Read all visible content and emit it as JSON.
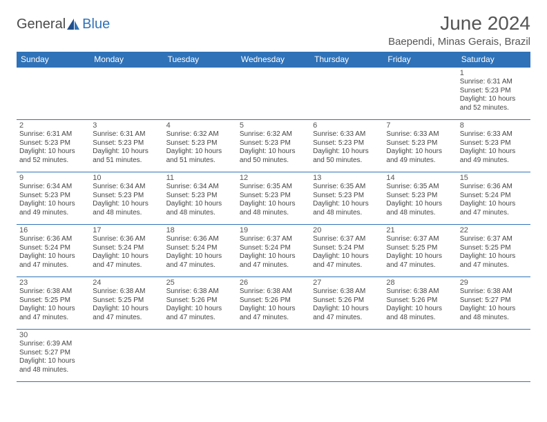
{
  "brand": {
    "part1": "General",
    "part2": "Blue"
  },
  "title": "June 2024",
  "location": "Baependi, Minas Gerais, Brazil",
  "colors": {
    "header_bg": "#2f72b8",
    "header_text": "#ffffff",
    "border": "#2f72b8",
    "text": "#444444",
    "title_text": "#555555"
  },
  "dayHeaders": [
    "Sunday",
    "Monday",
    "Tuesday",
    "Wednesday",
    "Thursday",
    "Friday",
    "Saturday"
  ],
  "weeks": [
    [
      null,
      null,
      null,
      null,
      null,
      null,
      {
        "n": "1",
        "sr": "6:31 AM",
        "ss": "5:23 PM",
        "dl": "10 hours and 52 minutes."
      }
    ],
    [
      {
        "n": "2",
        "sr": "6:31 AM",
        "ss": "5:23 PM",
        "dl": "10 hours and 52 minutes."
      },
      {
        "n": "3",
        "sr": "6:31 AM",
        "ss": "5:23 PM",
        "dl": "10 hours and 51 minutes."
      },
      {
        "n": "4",
        "sr": "6:32 AM",
        "ss": "5:23 PM",
        "dl": "10 hours and 51 minutes."
      },
      {
        "n": "5",
        "sr": "6:32 AM",
        "ss": "5:23 PM",
        "dl": "10 hours and 50 minutes."
      },
      {
        "n": "6",
        "sr": "6:33 AM",
        "ss": "5:23 PM",
        "dl": "10 hours and 50 minutes."
      },
      {
        "n": "7",
        "sr": "6:33 AM",
        "ss": "5:23 PM",
        "dl": "10 hours and 49 minutes."
      },
      {
        "n": "8",
        "sr": "6:33 AM",
        "ss": "5:23 PM",
        "dl": "10 hours and 49 minutes."
      }
    ],
    [
      {
        "n": "9",
        "sr": "6:34 AM",
        "ss": "5:23 PM",
        "dl": "10 hours and 49 minutes."
      },
      {
        "n": "10",
        "sr": "6:34 AM",
        "ss": "5:23 PM",
        "dl": "10 hours and 48 minutes."
      },
      {
        "n": "11",
        "sr": "6:34 AM",
        "ss": "5:23 PM",
        "dl": "10 hours and 48 minutes."
      },
      {
        "n": "12",
        "sr": "6:35 AM",
        "ss": "5:23 PM",
        "dl": "10 hours and 48 minutes."
      },
      {
        "n": "13",
        "sr": "6:35 AM",
        "ss": "5:23 PM",
        "dl": "10 hours and 48 minutes."
      },
      {
        "n": "14",
        "sr": "6:35 AM",
        "ss": "5:23 PM",
        "dl": "10 hours and 48 minutes."
      },
      {
        "n": "15",
        "sr": "6:36 AM",
        "ss": "5:24 PM",
        "dl": "10 hours and 47 minutes."
      }
    ],
    [
      {
        "n": "16",
        "sr": "6:36 AM",
        "ss": "5:24 PM",
        "dl": "10 hours and 47 minutes."
      },
      {
        "n": "17",
        "sr": "6:36 AM",
        "ss": "5:24 PM",
        "dl": "10 hours and 47 minutes."
      },
      {
        "n": "18",
        "sr": "6:36 AM",
        "ss": "5:24 PM",
        "dl": "10 hours and 47 minutes."
      },
      {
        "n": "19",
        "sr": "6:37 AM",
        "ss": "5:24 PM",
        "dl": "10 hours and 47 minutes."
      },
      {
        "n": "20",
        "sr": "6:37 AM",
        "ss": "5:24 PM",
        "dl": "10 hours and 47 minutes."
      },
      {
        "n": "21",
        "sr": "6:37 AM",
        "ss": "5:25 PM",
        "dl": "10 hours and 47 minutes."
      },
      {
        "n": "22",
        "sr": "6:37 AM",
        "ss": "5:25 PM",
        "dl": "10 hours and 47 minutes."
      }
    ],
    [
      {
        "n": "23",
        "sr": "6:38 AM",
        "ss": "5:25 PM",
        "dl": "10 hours and 47 minutes."
      },
      {
        "n": "24",
        "sr": "6:38 AM",
        "ss": "5:25 PM",
        "dl": "10 hours and 47 minutes."
      },
      {
        "n": "25",
        "sr": "6:38 AM",
        "ss": "5:26 PM",
        "dl": "10 hours and 47 minutes."
      },
      {
        "n": "26",
        "sr": "6:38 AM",
        "ss": "5:26 PM",
        "dl": "10 hours and 47 minutes."
      },
      {
        "n": "27",
        "sr": "6:38 AM",
        "ss": "5:26 PM",
        "dl": "10 hours and 47 minutes."
      },
      {
        "n": "28",
        "sr": "6:38 AM",
        "ss": "5:26 PM",
        "dl": "10 hours and 48 minutes."
      },
      {
        "n": "29",
        "sr": "6:38 AM",
        "ss": "5:27 PM",
        "dl": "10 hours and 48 minutes."
      }
    ],
    [
      {
        "n": "30",
        "sr": "6:39 AM",
        "ss": "5:27 PM",
        "dl": "10 hours and 48 minutes."
      },
      null,
      null,
      null,
      null,
      null,
      null
    ]
  ],
  "labels": {
    "sunrise": "Sunrise: ",
    "sunset": "Sunset: ",
    "daylight": "Daylight: "
  }
}
